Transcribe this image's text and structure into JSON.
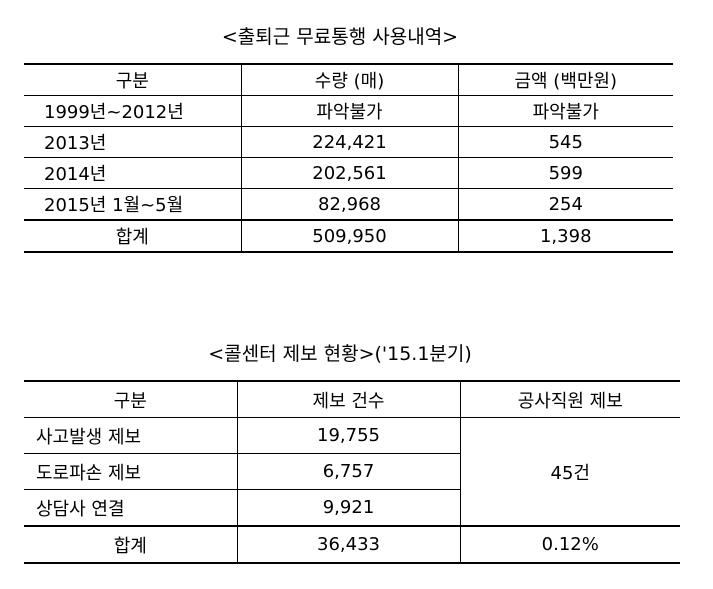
{
  "table1": {
    "title": "<출퇴근 무료통행 사용내역>",
    "header": [
      "구분",
      "수량 (매)",
      "금액 (백만원)"
    ],
    "rows": [
      [
        "1999년~2012년",
        "파악불가",
        "파악불가"
      ],
      [
        "2013년",
        "224,421",
        "545"
      ],
      [
        "2014년",
        "202,561",
        "599"
      ],
      [
        "2015년 1월~5월",
        "82,968",
        "254"
      ]
    ],
    "total": [
      "합계",
      "509,950",
      "1,398"
    ]
  },
  "table2": {
    "title": "<콜센터 제보 현황>('15.1분기)",
    "header": [
      "구분",
      "제보 건수",
      "공사직원 제보"
    ],
    "rows": [
      [
        "사고발생 제보",
        "19,755"
      ],
      [
        "도로파손 제보",
        "6,757"
      ],
      [
        "상담사 연결",
        "9,921"
      ]
    ],
    "merged_cell": "45건",
    "total": [
      "합계",
      "36,433",
      "0.12%"
    ]
  }
}
